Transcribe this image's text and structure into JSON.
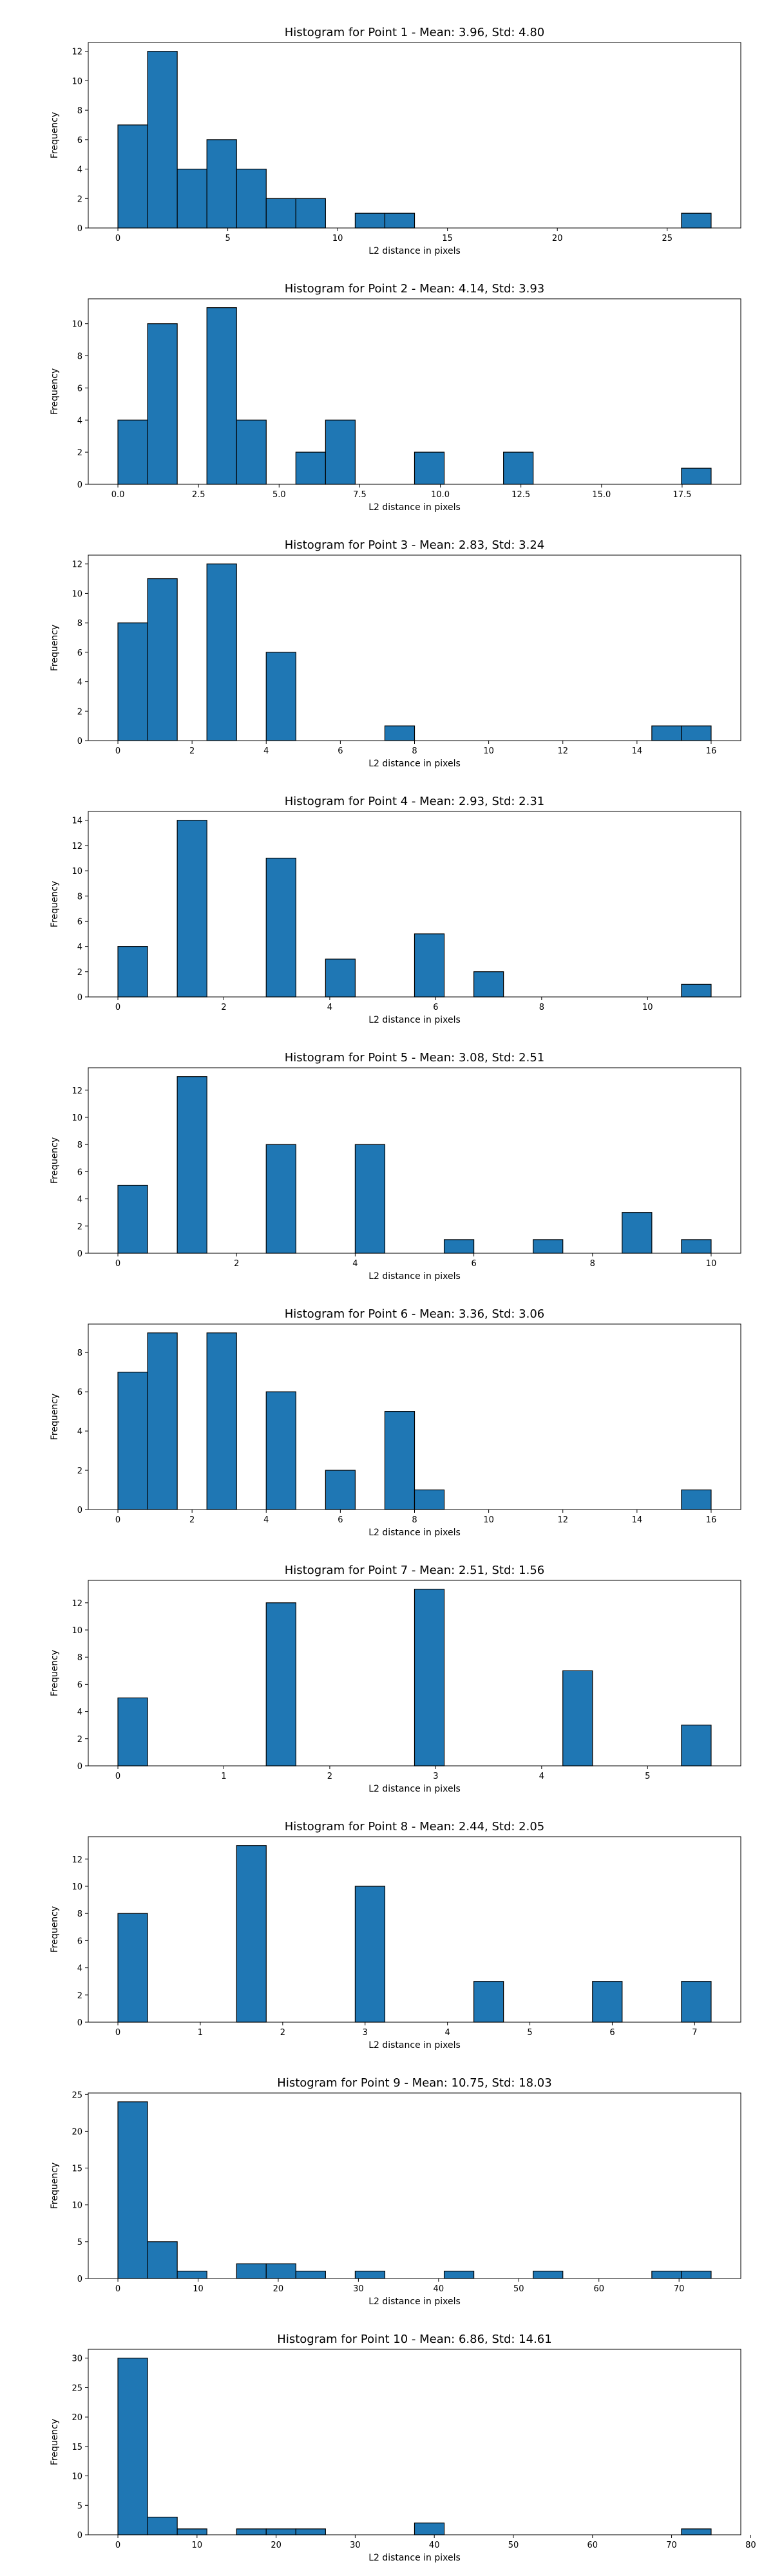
{
  "chart_data": [
    {
      "type": "bar",
      "title": "Histogram for Point 1 - Mean: 3.96, Std: 4.80",
      "xlabel": "L2 distance in pixels",
      "ylabel": "Frequency",
      "xlim": [
        -1.35,
        28.35
      ],
      "ylim": [
        0,
        12.6
      ],
      "xticks": [
        0,
        5,
        10,
        15,
        20,
        25
      ],
      "xtick_labels": [
        "0",
        "5",
        "10",
        "15",
        "20",
        "25"
      ],
      "yticks": [
        0,
        2,
        4,
        6,
        8,
        10,
        12
      ],
      "ytick_labels": [
        "0",
        "2",
        "4",
        "6",
        "8",
        "10",
        "12"
      ],
      "bins": [
        [
          0,
          1.35,
          7
        ],
        [
          1.35,
          2.7,
          12
        ],
        [
          2.7,
          4.05,
          4
        ],
        [
          4.05,
          5.4,
          6
        ],
        [
          5.4,
          6.75,
          4
        ],
        [
          6.75,
          8.1,
          2
        ],
        [
          8.1,
          9.45,
          2
        ],
        [
          10.8,
          12.15,
          1
        ],
        [
          12.15,
          13.5,
          1
        ],
        [
          25.65,
          27.0,
          1
        ]
      ]
    },
    {
      "type": "bar",
      "title": "Histogram for Point 2 - Mean: 4.14, Std: 3.93",
      "xlabel": "L2 distance in pixels",
      "ylabel": "Frequency",
      "xlim": [
        -0.92,
        19.32
      ],
      "ylim": [
        0,
        11.55
      ],
      "xticks": [
        0,
        2.5,
        5,
        7.5,
        10,
        12.5,
        15,
        17.5
      ],
      "xtick_labels": [
        "0.0",
        "2.5",
        "5.0",
        "7.5",
        "10.0",
        "12.5",
        "15.0",
        "17.5"
      ],
      "yticks": [
        0,
        2,
        4,
        6,
        8,
        10
      ],
      "ytick_labels": [
        "0",
        "2",
        "4",
        "6",
        "8",
        "10"
      ],
      "bins": [
        [
          0,
          0.92,
          4
        ],
        [
          0.92,
          1.84,
          10
        ],
        [
          2.76,
          3.68,
          11
        ],
        [
          3.68,
          4.6,
          4
        ],
        [
          5.52,
          6.44,
          2
        ],
        [
          6.44,
          7.36,
          4
        ],
        [
          9.2,
          10.12,
          2
        ],
        [
          11.96,
          12.88,
          2
        ],
        [
          17.48,
          18.4,
          1
        ]
      ]
    },
    {
      "type": "bar",
      "title": "Histogram for Point 3 - Mean: 2.83, Std: 3.24",
      "xlabel": "L2 distance in pixels",
      "ylabel": "Frequency",
      "xlim": [
        -0.8,
        16.8
      ],
      "ylim": [
        0,
        12.6
      ],
      "xticks": [
        0,
        2,
        4,
        6,
        8,
        10,
        12,
        14,
        16
      ],
      "xtick_labels": [
        "0",
        "2",
        "4",
        "6",
        "8",
        "10",
        "12",
        "14",
        "16"
      ],
      "yticks": [
        0,
        2,
        4,
        6,
        8,
        10,
        12
      ],
      "ytick_labels": [
        "0",
        "2",
        "4",
        "6",
        "8",
        "10",
        "12"
      ],
      "bins": [
        [
          0,
          0.8,
          8
        ],
        [
          0.8,
          1.6,
          11
        ],
        [
          2.4,
          3.2,
          12
        ],
        [
          4.0,
          4.8,
          6
        ],
        [
          7.2,
          8.0,
          1
        ],
        [
          14.4,
          15.2,
          1
        ],
        [
          15.2,
          16.0,
          1
        ]
      ]
    },
    {
      "type": "bar",
      "title": "Histogram for Point 4 - Mean: 2.93, Std: 2.31",
      "xlabel": "L2 distance in pixels",
      "ylabel": "Frequency",
      "xlim": [
        -0.56,
        11.76
      ],
      "ylim": [
        0,
        14.7
      ],
      "xticks": [
        0,
        2,
        4,
        6,
        8,
        10
      ],
      "xtick_labels": [
        "0",
        "2",
        "4",
        "6",
        "8",
        "10"
      ],
      "yticks": [
        0,
        2,
        4,
        6,
        8,
        10,
        12,
        14
      ],
      "ytick_labels": [
        "0",
        "2",
        "4",
        "6",
        "8",
        "10",
        "12",
        "14"
      ],
      "bins": [
        [
          0,
          0.56,
          4
        ],
        [
          1.12,
          1.68,
          14
        ],
        [
          2.8,
          3.36,
          11
        ],
        [
          3.92,
          4.48,
          3
        ],
        [
          5.6,
          6.16,
          5
        ],
        [
          6.72,
          7.28,
          2
        ],
        [
          10.64,
          11.2,
          1
        ]
      ]
    },
    {
      "type": "bar",
      "title": "Histogram for Point 5 - Mean: 3.08, Std: 2.51",
      "xlabel": "L2 distance in pixels",
      "ylabel": "Frequency",
      "xlim": [
        -0.5,
        10.5
      ],
      "ylim": [
        0,
        13.65
      ],
      "xticks": [
        0,
        2,
        4,
        6,
        8,
        10
      ],
      "xtick_labels": [
        "0",
        "2",
        "4",
        "6",
        "8",
        "10"
      ],
      "yticks": [
        0,
        2,
        4,
        6,
        8,
        10,
        12
      ],
      "ytick_labels": [
        "0",
        "2",
        "4",
        "6",
        "8",
        "10",
        "12"
      ],
      "bins": [
        [
          0,
          0.5,
          5
        ],
        [
          1.0,
          1.5,
          13
        ],
        [
          2.5,
          3.0,
          8
        ],
        [
          4.0,
          4.5,
          8
        ],
        [
          5.5,
          6.0,
          1
        ],
        [
          7.0,
          7.5,
          1
        ],
        [
          8.5,
          9.0,
          3
        ],
        [
          9.5,
          10.0,
          1
        ]
      ]
    },
    {
      "type": "bar",
      "title": "Histogram for Point 6 - Mean: 3.36, Std: 3.06",
      "xlabel": "L2 distance in pixels",
      "ylabel": "Frequency",
      "xlim": [
        -0.8,
        16.8
      ],
      "ylim": [
        0,
        9.45
      ],
      "xticks": [
        0,
        2,
        4,
        6,
        8,
        10,
        12,
        14,
        16
      ],
      "xtick_labels": [
        "0",
        "2",
        "4",
        "6",
        "8",
        "10",
        "12",
        "14",
        "16"
      ],
      "yticks": [
        0,
        2,
        4,
        6,
        8
      ],
      "ytick_labels": [
        "0",
        "2",
        "4",
        "6",
        "8"
      ],
      "bins": [
        [
          0,
          0.8,
          7
        ],
        [
          0.8,
          1.6,
          9
        ],
        [
          2.4,
          3.2,
          9
        ],
        [
          4.0,
          4.8,
          6
        ],
        [
          5.6,
          6.4,
          2
        ],
        [
          7.2,
          8.0,
          5
        ],
        [
          8.0,
          8.8,
          1
        ],
        [
          15.2,
          16.0,
          1
        ]
      ]
    },
    {
      "type": "bar",
      "title": "Histogram for Point 7 - Mean: 2.51, Std: 1.56",
      "xlabel": "L2 distance in pixels",
      "ylabel": "Frequency",
      "xlim": [
        -0.28,
        5.88
      ],
      "ylim": [
        0,
        13.65
      ],
      "xticks": [
        0,
        1,
        2,
        3,
        4,
        5
      ],
      "xtick_labels": [
        "0",
        "1",
        "2",
        "3",
        "4",
        "5"
      ],
      "yticks": [
        0,
        2,
        4,
        6,
        8,
        10,
        12
      ],
      "ytick_labels": [
        "0",
        "2",
        "4",
        "6",
        "8",
        "10",
        "12"
      ],
      "bins": [
        [
          0,
          0.28,
          5
        ],
        [
          1.4,
          1.68,
          12
        ],
        [
          2.8,
          3.08,
          13
        ],
        [
          4.2,
          4.48,
          7
        ],
        [
          5.32,
          5.6,
          3
        ]
      ]
    },
    {
      "type": "bar",
      "title": "Histogram for Point 8 - Mean: 2.44, Std: 2.05",
      "xlabel": "L2 distance in pixels",
      "ylabel": "Frequency",
      "xlim": [
        -0.36,
        7.56
      ],
      "ylim": [
        0,
        13.65
      ],
      "xticks": [
        0,
        1,
        2,
        3,
        4,
        5,
        6,
        7
      ],
      "xtick_labels": [
        "0",
        "1",
        "2",
        "3",
        "4",
        "5",
        "6",
        "7"
      ],
      "yticks": [
        0,
        2,
        4,
        6,
        8,
        10,
        12
      ],
      "ytick_labels": [
        "0",
        "2",
        "4",
        "6",
        "8",
        "10",
        "12"
      ],
      "bins": [
        [
          0,
          0.36,
          8
        ],
        [
          1.44,
          1.8,
          13
        ],
        [
          2.88,
          3.24,
          10
        ],
        [
          4.32,
          4.68,
          3
        ],
        [
          5.76,
          6.12,
          3
        ],
        [
          6.84,
          7.2,
          3
        ]
      ]
    },
    {
      "type": "bar",
      "title": "Histogram for Point 9 - Mean: 10.75, Std: 18.03",
      "xlabel": "L2 distance in pixels",
      "ylabel": "Frequency",
      "xlim": [
        -3.7,
        77.7
      ],
      "ylim": [
        0,
        25.2
      ],
      "xticks": [
        0,
        10,
        20,
        30,
        40,
        50,
        60,
        70
      ],
      "xtick_labels": [
        "0",
        "10",
        "20",
        "30",
        "40",
        "50",
        "60",
        "70"
      ],
      "yticks": [
        0,
        5,
        10,
        15,
        20,
        25
      ],
      "ytick_labels": [
        "0",
        "5",
        "10",
        "15",
        "20",
        "25"
      ],
      "bins": [
        [
          0,
          3.7,
          24
        ],
        [
          3.7,
          7.4,
          5
        ],
        [
          7.4,
          11.1,
          1
        ],
        [
          14.8,
          18.5,
          2
        ],
        [
          18.5,
          22.2,
          2
        ],
        [
          22.2,
          25.9,
          1
        ],
        [
          29.6,
          33.3,
          1
        ],
        [
          40.7,
          44.4,
          1
        ],
        [
          51.8,
          55.5,
          1
        ],
        [
          66.6,
          70.3,
          1
        ],
        [
          70.3,
          74.0,
          1
        ]
      ]
    },
    {
      "type": "bar",
      "title": "Histogram for Point 10 - Mean: 6.86, Std: 14.61",
      "xlabel": "L2 distance in pixels",
      "ylabel": "Frequency",
      "xlim": [
        -3.75,
        78.75
      ],
      "ylim": [
        0,
        31.5
      ],
      "xticks": [
        0,
        10,
        20,
        30,
        40,
        50,
        60,
        70,
        80
      ],
      "xtick_labels": [
        "0",
        "10",
        "20",
        "30",
        "40",
        "50",
        "60",
        "70",
        "80"
      ],
      "yticks": [
        0,
        5,
        10,
        15,
        20,
        25,
        30
      ],
      "ytick_labels": [
        "0",
        "5",
        "10",
        "15",
        "20",
        "25",
        "30"
      ],
      "bins": [
        [
          0,
          3.75,
          30
        ],
        [
          3.75,
          7.5,
          3
        ],
        [
          7.5,
          11.25,
          1
        ],
        [
          15.0,
          18.75,
          1
        ],
        [
          18.75,
          22.5,
          1
        ],
        [
          22.5,
          26.25,
          1
        ],
        [
          37.5,
          41.25,
          2
        ],
        [
          71.25,
          75.0,
          1
        ]
      ]
    }
  ]
}
